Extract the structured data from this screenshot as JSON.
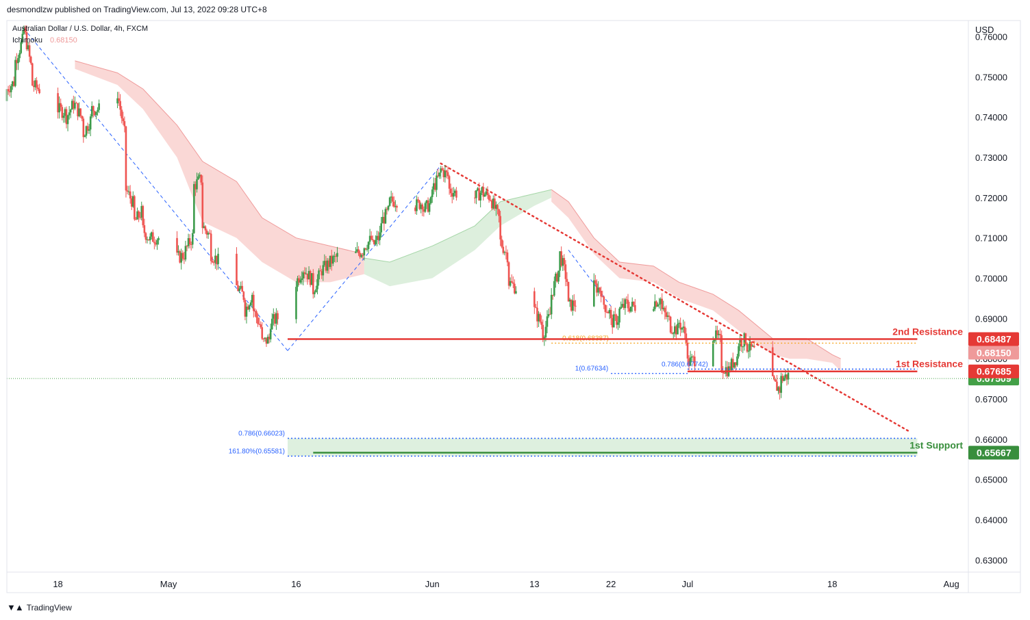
{
  "header": {
    "publisher": "desmondlzw published on TradingView.com, Jul 13, 2022 09:28 UTC+8"
  },
  "footer": {
    "brand": "TradingView"
  },
  "colors": {
    "up": "#26a69a",
    "up_body": "#3c9b4b",
    "down": "#ef5350",
    "resistance": "#e53935",
    "support": "#388e3c",
    "fib_orange": "#f5a623",
    "fib_blue": "#2962ff",
    "cloud_red": "#f8c8c5",
    "cloud_green": "#cfe8cf"
  },
  "chart_data": {
    "type": "candlestick",
    "title": "Australian Dollar / U.S. Dollar, 4h, FXCM",
    "indicator": {
      "name": "Ichimoku",
      "value": "0.68150"
    },
    "currency_label": "USD",
    "ylim": [
      0.627,
      0.764
    ],
    "y_ticks": [
      "0.76000",
      "0.75000",
      "0.74000",
      "0.73000",
      "0.72000",
      "0.71000",
      "0.70000",
      "0.69000",
      "0.68000",
      "0.67000",
      "0.66000",
      "0.65000",
      "0.64000",
      "0.63000"
    ],
    "x_ticks": [
      "18",
      "May",
      "16",
      "Jun",
      "13",
      "22",
      "Jul",
      "18",
      "Aug"
    ],
    "x_range": [
      "2022-04-12",
      "2022-08-03"
    ],
    "x_tick_dates": [
      "2022-04-18",
      "2022-05-01",
      "2022-05-16",
      "2022-06-01",
      "2022-06-13",
      "2022-06-22",
      "2022-07-01",
      "2022-07-18",
      "2022-08-01"
    ],
    "price_path": [
      [
        "2022-04-12",
        0.744,
        0.747
      ],
      [
        "2022-04-13",
        0.749,
        0.754
      ],
      [
        "2022-04-14",
        0.76,
        0.762
      ],
      [
        "2022-04-15",
        0.751,
        0.748
      ],
      [
        "2022-04-18",
        0.744,
        0.742
      ],
      [
        "2022-04-19",
        0.741,
        0.74
      ],
      [
        "2022-04-20",
        0.744,
        0.743
      ],
      [
        "2022-04-21",
        0.739,
        0.736
      ],
      [
        "2022-04-22",
        0.74,
        0.742
      ],
      [
        "2022-04-25",
        0.742,
        0.746
      ],
      [
        "2022-04-26",
        0.734,
        0.722
      ],
      [
        "2022-04-27",
        0.718,
        0.714
      ],
      [
        "2022-04-28",
        0.717,
        0.712
      ],
      [
        "2022-04-29",
        0.709,
        0.71
      ],
      [
        "2022-05-02",
        0.71,
        0.705
      ],
      [
        "2022-05-03",
        0.706,
        0.707
      ],
      [
        "2022-05-04",
        0.711,
        0.723
      ],
      [
        "2022-05-05",
        0.725,
        0.713
      ],
      [
        "2022-05-06",
        0.71,
        0.706
      ],
      [
        "2022-05-09",
        0.7,
        0.698
      ],
      [
        "2022-05-10",
        0.695,
        0.692
      ],
      [
        "2022-05-11",
        0.697,
        0.692
      ],
      [
        "2022-05-12",
        0.687,
        0.684
      ],
      [
        "2022-05-13",
        0.685,
        0.689
      ],
      [
        "2022-05-16",
        0.693,
        0.699
      ],
      [
        "2022-05-17",
        0.703,
        0.702
      ],
      [
        "2022-05-18",
        0.699,
        0.697
      ],
      [
        "2022-05-19",
        0.702,
        0.702
      ],
      [
        "2022-05-20",
        0.704,
        0.704
      ],
      [
        "2022-05-23",
        0.709,
        0.706
      ],
      [
        "2022-05-24",
        0.707,
        0.708
      ],
      [
        "2022-05-25",
        0.71,
        0.708
      ],
      [
        "2022-05-26",
        0.711,
        0.714
      ],
      [
        "2022-05-27",
        0.717,
        0.719
      ],
      [
        "2022-05-30",
        0.72,
        0.718
      ],
      [
        "2022-05-31",
        0.719,
        0.717
      ],
      [
        "2022-06-01",
        0.719,
        0.722
      ],
      [
        "2022-06-02",
        0.726,
        0.727
      ],
      [
        "2022-06-03",
        0.725,
        0.722
      ],
      [
        "2022-06-06",
        0.719,
        0.72
      ],
      [
        "2022-06-07",
        0.722,
        0.721
      ],
      [
        "2022-06-08",
        0.72,
        0.719
      ],
      [
        "2022-06-09",
        0.714,
        0.709
      ],
      [
        "2022-06-10",
        0.705,
        0.699
      ],
      [
        "2022-06-13",
        0.694,
        0.692
      ],
      [
        "2022-06-14",
        0.688,
        0.686
      ],
      [
        "2022-06-15",
        0.692,
        0.696
      ],
      [
        "2022-06-16",
        0.703,
        0.706
      ],
      [
        "2022-06-17",
        0.698,
        0.693
      ],
      [
        "2022-06-20",
        0.696,
        0.698
      ],
      [
        "2022-06-21",
        0.697,
        0.694
      ],
      [
        "2022-06-22",
        0.691,
        0.689
      ],
      [
        "2022-06-23",
        0.69,
        0.692
      ],
      [
        "2022-06-24",
        0.694,
        0.693
      ],
      [
        "2022-06-27",
        0.693,
        0.694
      ],
      [
        "2022-06-28",
        0.695,
        0.692
      ],
      [
        "2022-06-29",
        0.689,
        0.688
      ],
      [
        "2022-06-30",
        0.687,
        0.689
      ],
      [
        "2022-07-01",
        0.685,
        0.679
      ],
      [
        "2022-07-04",
        0.682,
        0.686
      ],
      [
        "2022-07-05",
        0.684,
        0.678
      ],
      [
        "2022-07-06",
        0.677,
        0.678
      ],
      [
        "2022-07-07",
        0.681,
        0.684
      ],
      [
        "2022-07-08",
        0.685,
        0.683
      ],
      [
        "2022-07-11",
        0.679,
        0.674
      ],
      [
        "2022-07-12",
        0.672,
        0.675
      ],
      [
        "2022-07-13",
        0.676,
        0.6751
      ]
    ],
    "cloud_segments": [
      {
        "color": "red",
        "points": [
          [
            "2022-04-20",
            0.754,
            0.752
          ],
          [
            "2022-04-25",
            0.751,
            0.748
          ],
          [
            "2022-04-28",
            0.747,
            0.742
          ],
          [
            "2022-05-02",
            0.738,
            0.73
          ],
          [
            "2022-05-05",
            0.729,
            0.714
          ],
          [
            "2022-05-09",
            0.724,
            0.71
          ],
          [
            "2022-05-12",
            0.715,
            0.704
          ],
          [
            "2022-05-16",
            0.71,
            0.699
          ],
          [
            "2022-05-20",
            0.708,
            0.699
          ],
          [
            "2022-05-24",
            0.706,
            0.701
          ]
        ]
      },
      {
        "color": "green",
        "points": [
          [
            "2022-05-24",
            0.705,
            0.701
          ],
          [
            "2022-05-27",
            0.704,
            0.698
          ],
          [
            "2022-06-01",
            0.708,
            0.7
          ],
          [
            "2022-06-06",
            0.713,
            0.707
          ],
          [
            "2022-06-09",
            0.719,
            0.713
          ],
          [
            "2022-06-13",
            0.721,
            0.718
          ],
          [
            "2022-06-15",
            0.722,
            0.72
          ]
        ]
      },
      {
        "color": "red",
        "points": [
          [
            "2022-06-15",
            0.722,
            0.719
          ],
          [
            "2022-06-17",
            0.719,
            0.715
          ],
          [
            "2022-06-20",
            0.71,
            0.706
          ],
          [
            "2022-06-23",
            0.704,
            0.7
          ],
          [
            "2022-06-27",
            0.703,
            0.699
          ],
          [
            "2022-06-30",
            0.699,
            0.695
          ],
          [
            "2022-07-04",
            0.696,
            0.692
          ],
          [
            "2022-07-07",
            0.692,
            0.687
          ],
          [
            "2022-07-11",
            0.685,
            0.681
          ],
          [
            "2022-07-13",
            0.685,
            0.68
          ],
          [
            "2022-07-15",
            0.685,
            0.68
          ],
          [
            "2022-07-18",
            0.681,
            0.679
          ],
          [
            "2022-07-19",
            0.68,
            0.677
          ]
        ]
      }
    ],
    "levels": [
      {
        "name": "2nd Resistance",
        "value": 0.68487,
        "value_label": "0.68487",
        "color": "resistance",
        "from": "2022-05-15",
        "to": "2022-07-28"
      },
      {
        "name": "1st Resistance",
        "value": 0.67685,
        "value_label": "0.67685",
        "color": "resistance",
        "from": "2022-07-01",
        "to": "2022-07-28"
      },
      {
        "name": "1st Support",
        "value": 0.65667,
        "value_label": "0.65667",
        "color": "support",
        "from": "2022-05-18",
        "to": "2022-07-28"
      }
    ],
    "price_tags": [
      {
        "value": 0.6815,
        "label": "0.68150",
        "color": "#ef9a9a"
      },
      {
        "value": 0.67509,
        "label": "0.67509",
        "color": "#43a047"
      }
    ],
    "fib_labels": [
      {
        "text": "0.618(0.68387)",
        "value": 0.68387,
        "from": "2022-06-15",
        "to": "2022-07-28",
        "color": "fib_orange"
      },
      {
        "text": "0.786(0.67742)",
        "value": 0.67742,
        "from": "2022-07-01",
        "to": "2022-07-28",
        "color": "fib_blue"
      },
      {
        "text": "1(0.67634)",
        "value": 0.67634,
        "from": "2022-06-22",
        "to": "2022-07-01",
        "color": "fib_blue"
      },
      {
        "text": "0.786(0.66023)",
        "value": 0.66023,
        "from": "2022-05-15",
        "to": "2022-07-28",
        "color": "fib_blue"
      },
      {
        "text": "161.80%(0.65581)",
        "value": 0.65581,
        "from": "2022-05-15",
        "to": "2022-07-28",
        "color": "fib_blue"
      }
    ],
    "trendlines": [
      {
        "style": "dashed-blue",
        "points": [
          [
            "2022-04-14",
            0.762
          ],
          [
            "2022-05-15",
            0.682
          ]
        ]
      },
      {
        "style": "dashed-blue",
        "points": [
          [
            "2022-05-15",
            0.682
          ],
          [
            "2022-06-02",
            0.728
          ]
        ]
      },
      {
        "style": "dashed-blue",
        "points": [
          [
            "2022-06-17",
            0.707
          ],
          [
            "2022-06-22",
            0.693
          ]
        ]
      },
      {
        "style": "dotted-red",
        "points": [
          [
            "2022-06-02",
            0.7285
          ],
          [
            "2022-07-27",
            0.662
          ]
        ]
      }
    ],
    "support_zone": {
      "top": 0.66023,
      "bottom": 0.65581,
      "from": "2022-05-15",
      "to": "2022-07-28"
    },
    "current_price": 0.67509
  }
}
